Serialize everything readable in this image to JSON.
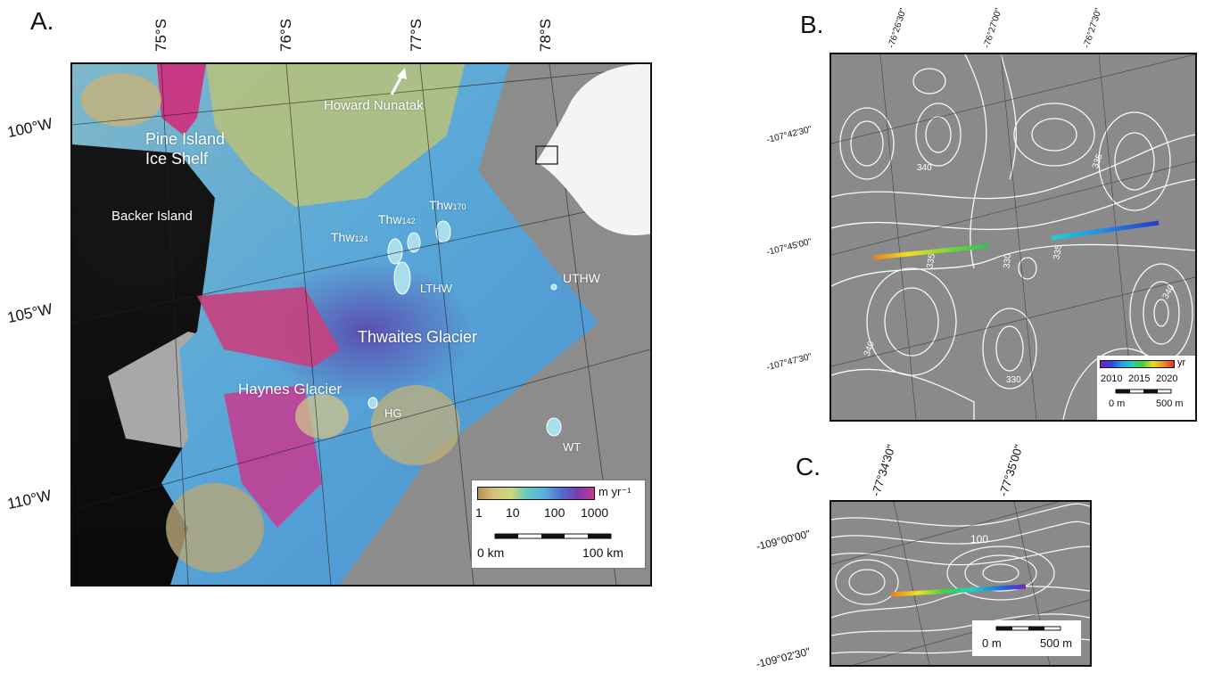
{
  "panels": {
    "a": {
      "letter": "A.",
      "lat_ticks": [
        "75°S",
        "76°S",
        "77°S",
        "78°S"
      ],
      "lon_ticks": [
        "100°W",
        "105°W",
        "110°W"
      ],
      "labels": {
        "howard": "Howard Nunatak",
        "pine": "Pine Island",
        "pine2": "Ice Shelf",
        "backer": "Backer Island",
        "thwaites": "Thwaites Glacier",
        "haynes": "Haynes Glacier",
        "thw": "Thw",
        "thw124": "124",
        "thw142": "142",
        "thw170": "170",
        "lthw": "LTHW",
        "uthw": "UTHW",
        "hg": "HG",
        "wt": "WT"
      },
      "colorbar": {
        "unit": "m yr⁻¹",
        "ticks": [
          "1",
          "10",
          "100",
          "1000"
        ],
        "colors": [
          "#b8905a",
          "#d8c27a",
          "#c9d97a",
          "#60c8c4",
          "#5aaee0",
          "#5070d0",
          "#7a3ab0",
          "#c43a8a"
        ]
      },
      "scalebar": {
        "left": "0 km",
        "right": "100 km"
      }
    },
    "b": {
      "letter": "B.",
      "top_ticks": [
        "-76°26'30\"",
        "-76°27'00\"",
        "-76°27'30\""
      ],
      "left_ticks": [
        "-107°42'30\"",
        "-107°45'00\"",
        "-107°47'30\""
      ],
      "contours": [
        "340",
        "335",
        "335",
        "330",
        "335",
        "340",
        "340",
        "330"
      ],
      "year_legend": {
        "unit": "yr",
        "ticks": [
          "2010",
          "2015",
          "2020"
        ]
      },
      "scalebar": {
        "left": "0 m",
        "right": "500 m"
      }
    },
    "c": {
      "letter": "C.",
      "top_ticks": [
        "-77°34'30\"",
        "-77°35'00\""
      ],
      "left_ticks": [
        "-109°00'00\"",
        "-109°02'30\""
      ],
      "contours": [
        "100"
      ],
      "scalebar": {
        "left": "0 m",
        "right": "500 m"
      }
    }
  }
}
